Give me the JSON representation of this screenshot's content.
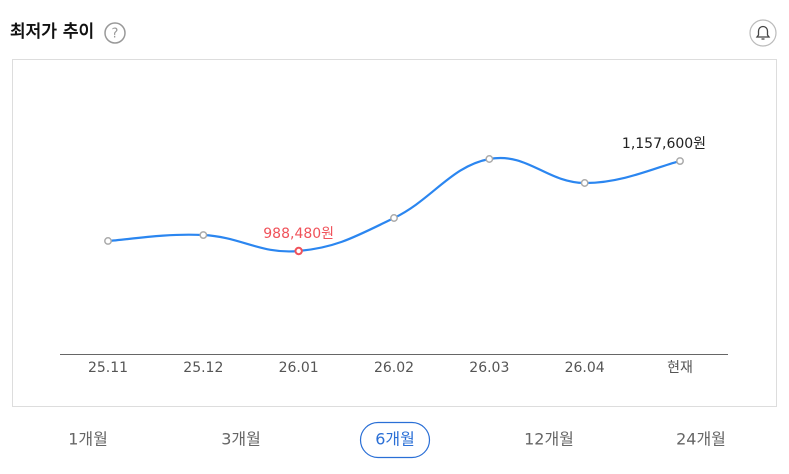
{
  "header": {
    "title": "최저가 추이",
    "help_icon": "?"
  },
  "chart_data": {
    "type": "line",
    "categories": [
      "25.11",
      "25.12",
      "26.01",
      "26.02",
      "26.03",
      "26.04",
      "현재"
    ],
    "series": [
      {
        "color": "#2b86f0",
        "values": [
          1007300,
          1018500,
          988480,
          1050500,
          1161400,
          1116300,
          1157600
        ],
        "value_labels": [
          null,
          null,
          "988,480원",
          null,
          null,
          null,
          "1,157,600원"
        ],
        "label_colors": [
          null,
          null,
          "#f0525a",
          null,
          null,
          null,
          "#222222"
        ]
      }
    ],
    "highlight_index": 2,
    "highlight_color": "#f0525a"
  },
  "periods": {
    "options": [
      "1개월",
      "3개월",
      "6개월",
      "12개월",
      "24개월"
    ],
    "selected": 2,
    "selected_color": "#2a6fd6"
  }
}
